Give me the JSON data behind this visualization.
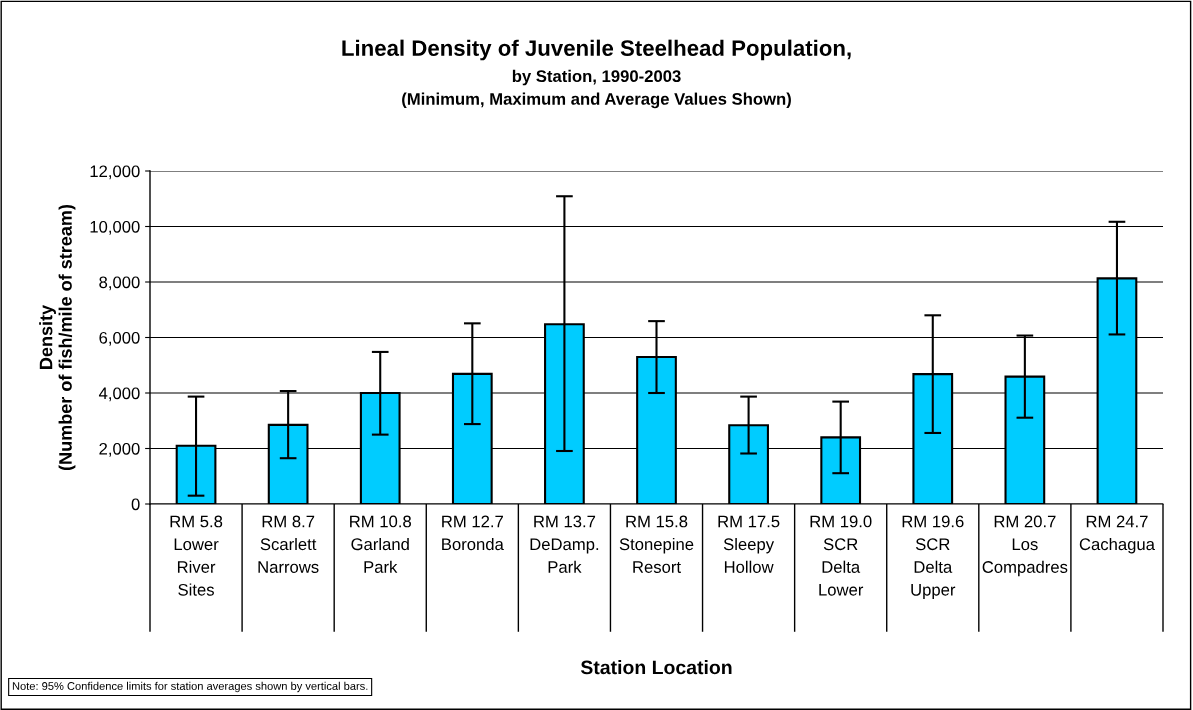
{
  "chart_data": {
    "type": "bar",
    "title": "Lineal Density of Juvenile Steelhead Population,",
    "subtitle": "by Station, 1990-2003\n(Minimum, Maximum and Average Values Shown)",
    "xlabel": "Station Location",
    "ylabel": "Density\n(Number of fish/mile of stream)",
    "categories": [
      "RM 5.8\nLower\nRiver\nSites",
      "RM 8.7\nScarlett\nNarrows",
      "RM 10.8\nGarland\nPark",
      "RM 12.7\nBoronda",
      "RM 13.7\nDeDamp.\nPark",
      "RM 15.8\nStonepine\nResort",
      "RM 17.5\nSleepy\nHollow",
      "RM 19.0\nSCR\nDelta\nLower",
      "RM 19.6\nSCR\nDelta\nUpper",
      "RM 20.7\nLos\nCompadres",
      "RM 24.7\nCachagua"
    ],
    "values": [
      2100,
      2850,
      4000,
      4690,
      6480,
      5300,
      2840,
      2400,
      4680,
      4590,
      8130
    ],
    "errors": [
      [
        300,
        3870
      ],
      [
        1650,
        4070
      ],
      [
        2500,
        5480
      ],
      [
        2880,
        6510
      ],
      [
        1910,
        11090
      ],
      [
        4000,
        6590
      ],
      [
        1820,
        3870
      ],
      [
        1110,
        3690
      ],
      [
        2560,
        6800
      ],
      [
        3110,
        6070
      ],
      [
        6110,
        10170
      ]
    ],
    "color": "#00ccff",
    "ylim": [
      0,
      12000
    ],
    "yticks": [
      {
        "value": 0,
        "label": "0"
      },
      {
        "value": 2000,
        "label": "2,000"
      },
      {
        "value": 4000,
        "label": "4,000"
      },
      {
        "value": 6000,
        "label": "6,000"
      },
      {
        "value": 8000,
        "label": "8,000"
      },
      {
        "value": 10000,
        "label": "10,000"
      },
      {
        "value": 12000,
        "label": "12,000"
      }
    ],
    "grid": "y",
    "legend": false,
    "annotations": [
      "Note: 95% Confidence limits for station averages shown by vertical bars."
    ]
  }
}
